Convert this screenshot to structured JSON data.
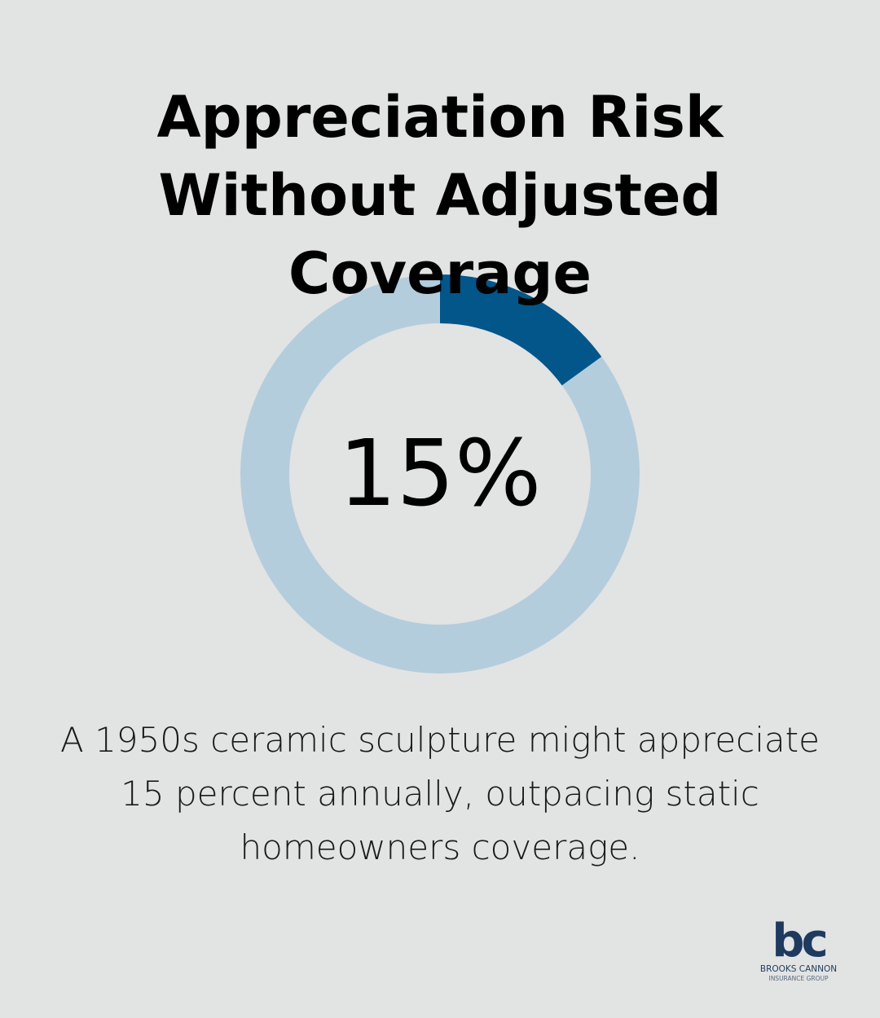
{
  "chart_data": {
    "type": "donut",
    "title": "Appreciation Risk Without Adjusted Coverage",
    "values": [
      15
    ],
    "value_labels": [
      "15%"
    ],
    "ylim": [
      0,
      100
    ],
    "color": "#02568a",
    "track_color": "#b4cddd"
  },
  "caption": "A 1950s ceramic sculpture might appreciate 15 percent annually, outpacing static homeowners coverage.",
  "logo": {
    "mark": "bc",
    "name": "BROOKS CANNON",
    "tagline": "INSURANCE GROUP"
  }
}
